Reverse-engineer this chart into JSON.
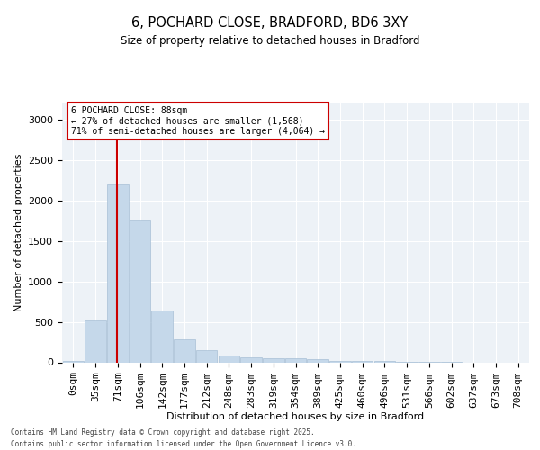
{
  "title": "6, POCHARD CLOSE, BRADFORD, BD6 3XY",
  "subtitle": "Size of property relative to detached houses in Bradford",
  "xlabel": "Distribution of detached houses by size in Bradford",
  "ylabel": "Number of detached properties",
  "bar_color": "#c5d8ea",
  "bar_edge_color": "#a8c0d6",
  "background_color": "#edf2f7",
  "grid_color": "#ffffff",
  "annotation_text": "6 POCHARD CLOSE: 88sqm\n← 27% of detached houses are smaller (1,568)\n71% of semi-detached houses are larger (4,064) →",
  "annotation_box_color": "#cc0000",
  "vline_color": "#cc0000",
  "categories": [
    "0sqm",
    "35sqm",
    "71sqm",
    "106sqm",
    "142sqm",
    "177sqm",
    "212sqm",
    "248sqm",
    "283sqm",
    "319sqm",
    "354sqm",
    "389sqm",
    "425sqm",
    "460sqm",
    "496sqm",
    "531sqm",
    "566sqm",
    "602sqm",
    "637sqm",
    "673sqm",
    "708sqm"
  ],
  "values": [
    20,
    520,
    2200,
    1750,
    635,
    280,
    155,
    85,
    65,
    45,
    45,
    35,
    20,
    15,
    15,
    5,
    2,
    1,
    0,
    0,
    0
  ],
  "ylim": [
    0,
    3200
  ],
  "yticks": [
    0,
    500,
    1000,
    1500,
    2000,
    2500,
    3000
  ],
  "footer1": "Contains HM Land Registry data © Crown copyright and database right 2025.",
  "footer2": "Contains public sector information licensed under the Open Government Licence v3.0."
}
